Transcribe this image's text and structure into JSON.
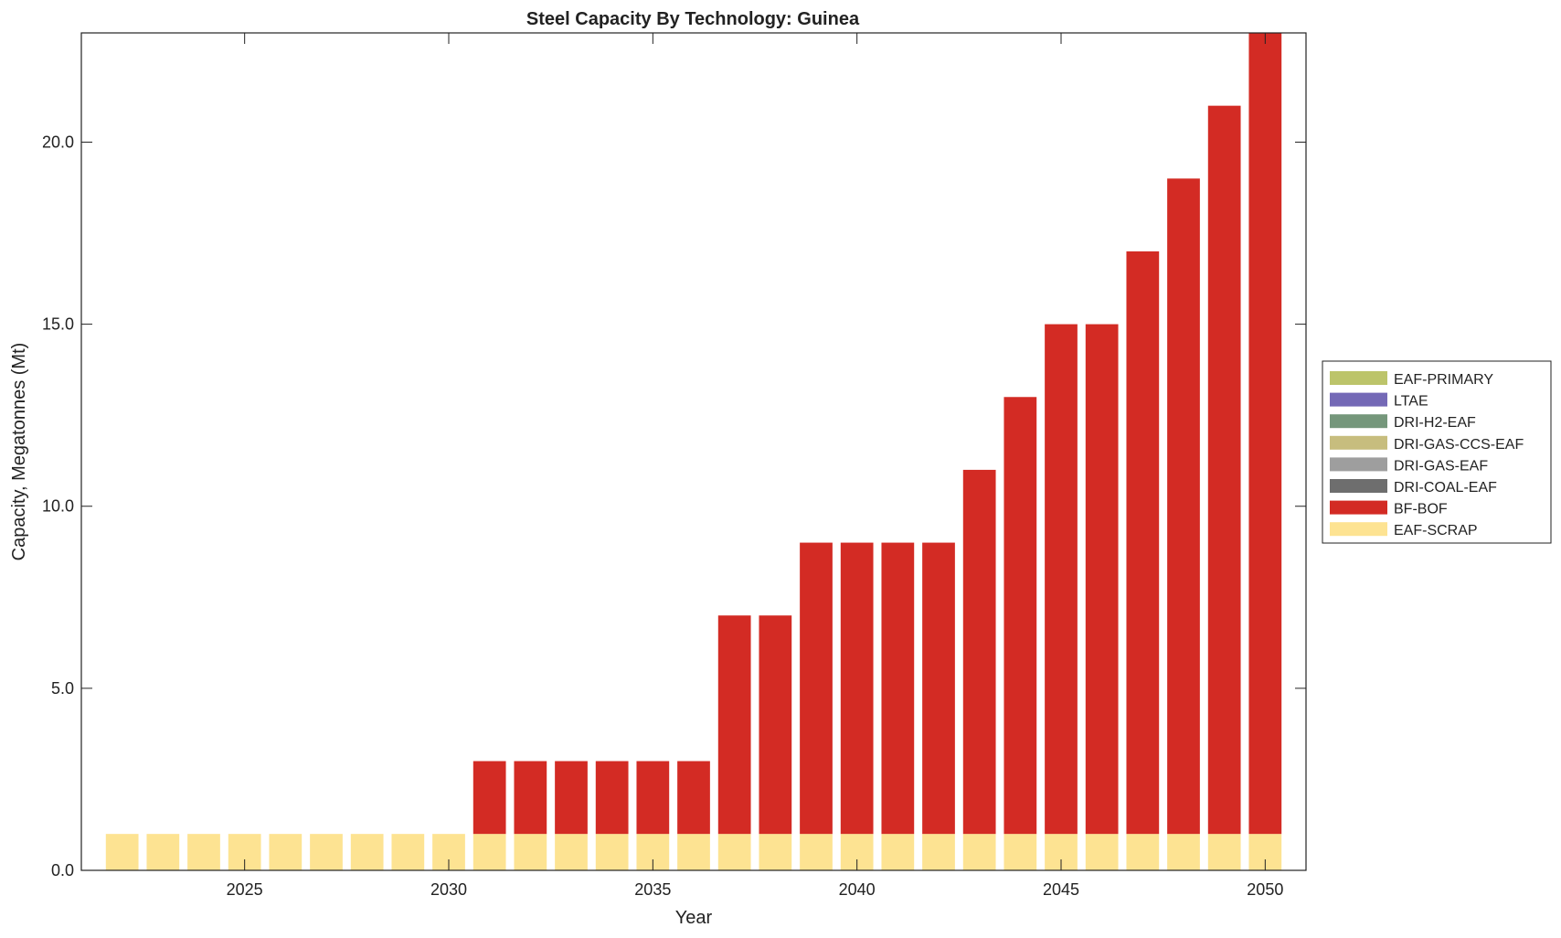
{
  "chart_data": {
    "type": "bar",
    "stacked": true,
    "title": "Steel Capacity By Technology: Guinea",
    "xlabel": "Year",
    "ylabel": "Capacity, Megatonnes (Mt)",
    "xlim": [
      2021,
      2051
    ],
    "ylim": [
      0,
      23
    ],
    "xticks": [
      2025,
      2030,
      2035,
      2040,
      2045,
      2050
    ],
    "yticks": [
      0,
      5,
      10,
      15,
      20
    ],
    "ytick_labels": [
      "0.0",
      "5.0",
      "10.0",
      "15.0",
      "20.0"
    ],
    "grid": false,
    "legend_placement": "right",
    "categories": [
      2022,
      2023,
      2024,
      2025,
      2026,
      2027,
      2028,
      2029,
      2030,
      2031,
      2032,
      2033,
      2034,
      2035,
      2036,
      2037,
      2038,
      2039,
      2040,
      2041,
      2042,
      2043,
      2044,
      2045,
      2046,
      2047,
      2048,
      2049,
      2050
    ],
    "series": [
      {
        "name": "EAF-SCRAP",
        "color": "#fde392",
        "values": [
          1,
          1,
          1,
          1,
          1,
          1,
          1,
          1,
          1,
          1,
          1,
          1,
          1,
          1,
          1,
          1,
          1,
          1,
          1,
          1,
          1,
          1,
          1,
          1,
          1,
          1,
          1,
          1,
          1
        ]
      },
      {
        "name": "BF-BOF",
        "color": "#d32b24",
        "values": [
          0,
          0,
          0,
          0,
          0,
          0,
          0,
          0,
          0,
          2,
          2,
          2,
          2,
          2,
          2,
          6,
          6,
          8,
          8,
          8,
          8,
          10,
          12,
          14,
          14,
          16,
          18,
          20,
          22
        ]
      },
      {
        "name": "DRI-COAL-EAF",
        "color": "#6e6e6e",
        "values": [
          0,
          0,
          0,
          0,
          0,
          0,
          0,
          0,
          0,
          0,
          0,
          0,
          0,
          0,
          0,
          0,
          0,
          0,
          0,
          0,
          0,
          0,
          0,
          0,
          0,
          0,
          0,
          0,
          0
        ]
      },
      {
        "name": "DRI-GAS-EAF",
        "color": "#9e9e9e",
        "values": [
          0,
          0,
          0,
          0,
          0,
          0,
          0,
          0,
          0,
          0,
          0,
          0,
          0,
          0,
          0,
          0,
          0,
          0,
          0,
          0,
          0,
          0,
          0,
          0,
          0,
          0,
          0,
          0,
          0
        ]
      },
      {
        "name": "DRI-GAS-CCS-EAF",
        "color": "#c7bd7e",
        "values": [
          0,
          0,
          0,
          0,
          0,
          0,
          0,
          0,
          0,
          0,
          0,
          0,
          0,
          0,
          0,
          0,
          0,
          0,
          0,
          0,
          0,
          0,
          0,
          0,
          0,
          0,
          0,
          0,
          0
        ]
      },
      {
        "name": "DRI-H2-EAF",
        "color": "#75977b",
        "values": [
          0,
          0,
          0,
          0,
          0,
          0,
          0,
          0,
          0,
          0,
          0,
          0,
          0,
          0,
          0,
          0,
          0,
          0,
          0,
          0,
          0,
          0,
          0,
          0,
          0,
          0,
          0,
          0,
          0
        ]
      },
      {
        "name": "LTAE",
        "color": "#7469b6",
        "values": [
          0,
          0,
          0,
          0,
          0,
          0,
          0,
          0,
          0,
          0,
          0,
          0,
          0,
          0,
          0,
          0,
          0,
          0,
          0,
          0,
          0,
          0,
          0,
          0,
          0,
          0,
          0,
          0,
          0
        ]
      },
      {
        "name": "EAF-PRIMARY",
        "color": "#bcc46a",
        "values": [
          0,
          0,
          0,
          0,
          0,
          0,
          0,
          0,
          0,
          0,
          0,
          0,
          0,
          0,
          0,
          0,
          0,
          0,
          0,
          0,
          0,
          0,
          0,
          0,
          0,
          0,
          0,
          0,
          0
        ]
      }
    ],
    "legend_order": [
      "EAF-PRIMARY",
      "LTAE",
      "DRI-H2-EAF",
      "DRI-GAS-CCS-EAF",
      "DRI-GAS-EAF",
      "DRI-COAL-EAF",
      "BF-BOF",
      "EAF-SCRAP"
    ]
  }
}
